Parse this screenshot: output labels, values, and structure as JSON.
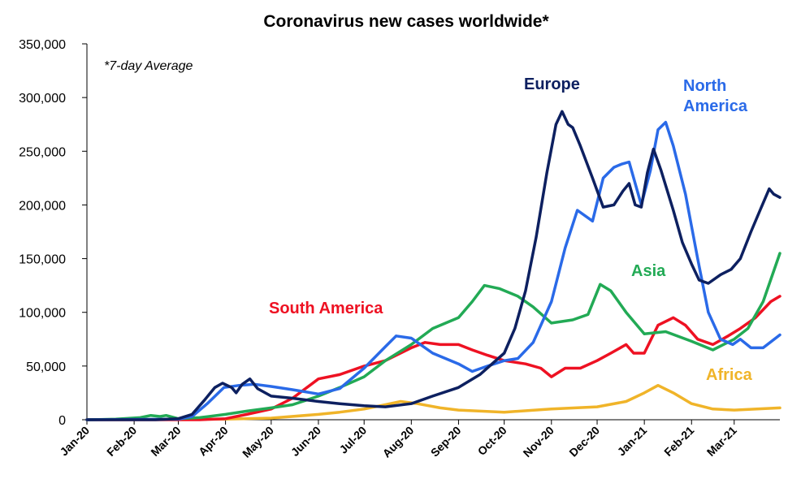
{
  "chart_data": {
    "type": "line",
    "title": "Coronavirus new cases worldwide*",
    "annotation": "*7-day Average",
    "xlabel": "",
    "ylabel": "",
    "ylim": [
      0,
      350000
    ],
    "y_ticks": [
      "0",
      "50,000",
      "100,000",
      "150,000",
      "200,000",
      "250,000",
      "300,000",
      "350,000"
    ],
    "x_ticks": [
      "Jan-20",
      "Feb-20",
      "Mar-20",
      "Apr-20",
      "May-20",
      "Jun-20",
      "Jul-20",
      "Aug-20",
      "Sep-20",
      "Oct-20",
      "Nov-20",
      "Dec-20",
      "Jan-21",
      "Feb-21",
      "Mar-21"
    ],
    "x_tick_values": [
      "2020-01-01",
      "2020-02-01",
      "2020-03-01",
      "2020-04-01",
      "2020-05-01",
      "2020-06-01",
      "2020-07-01",
      "2020-08-01",
      "2020-09-01",
      "2020-10-01",
      "2020-11-01",
      "2020-12-01",
      "2021-01-01",
      "2021-02-01",
      "2021-03-01"
    ],
    "xlim": [
      "2020-01-01",
      "2021-03-31"
    ],
    "grid": false,
    "legend": "none (series labelled directly on chart)",
    "series": [
      {
        "name": "Europe",
        "color": "#0d2060",
        "points": [
          [
            "2020-01-01",
            0
          ],
          [
            "2020-02-15",
            0
          ],
          [
            "2020-03-01",
            1000
          ],
          [
            "2020-03-10",
            5000
          ],
          [
            "2020-03-18",
            18000
          ],
          [
            "2020-03-25",
            30000
          ],
          [
            "2020-03-30",
            34000
          ],
          [
            "2020-04-05",
            30000
          ],
          [
            "2020-04-08",
            25000
          ],
          [
            "2020-04-12",
            33000
          ],
          [
            "2020-04-17",
            38000
          ],
          [
            "2020-04-22",
            29000
          ],
          [
            "2020-05-01",
            22000
          ],
          [
            "2020-05-15",
            20000
          ],
          [
            "2020-06-01",
            17000
          ],
          [
            "2020-06-15",
            15000
          ],
          [
            "2020-07-01",
            13000
          ],
          [
            "2020-07-15",
            12000
          ],
          [
            "2020-08-01",
            15000
          ],
          [
            "2020-08-15",
            22000
          ],
          [
            "2020-09-01",
            30000
          ],
          [
            "2020-09-15",
            42000
          ],
          [
            "2020-10-01",
            62000
          ],
          [
            "2020-10-08",
            85000
          ],
          [
            "2020-10-15",
            120000
          ],
          [
            "2020-10-22",
            170000
          ],
          [
            "2020-10-29",
            230000
          ],
          [
            "2020-11-04",
            275000
          ],
          [
            "2020-11-08",
            287000
          ],
          [
            "2020-11-12",
            275000
          ],
          [
            "2020-11-15",
            272000
          ],
          [
            "2020-11-20",
            255000
          ],
          [
            "2020-11-28",
            225000
          ],
          [
            "2020-12-05",
            198000
          ],
          [
            "2020-12-12",
            200000
          ],
          [
            "2020-12-18",
            213000
          ],
          [
            "2020-12-22",
            220000
          ],
          [
            "2020-12-26",
            200000
          ],
          [
            "2020-12-30",
            198000
          ],
          [
            "2021-01-03",
            230000
          ],
          [
            "2021-01-07",
            252000
          ],
          [
            "2021-01-12",
            232000
          ],
          [
            "2021-01-20",
            195000
          ],
          [
            "2021-01-26",
            165000
          ],
          [
            "2021-02-01",
            145000
          ],
          [
            "2021-02-06",
            130000
          ],
          [
            "2021-02-12",
            127000
          ],
          [
            "2021-02-20",
            135000
          ],
          [
            "2021-02-27",
            140000
          ],
          [
            "2021-03-05",
            150000
          ],
          [
            "2021-03-12",
            175000
          ],
          [
            "2021-03-18",
            195000
          ],
          [
            "2021-03-24",
            215000
          ],
          [
            "2021-03-27",
            210000
          ],
          [
            "2021-03-31",
            207000
          ]
        ]
      },
      {
        "name": "North America",
        "color": "#2a6ae8",
        "points": [
          [
            "2020-01-01",
            0
          ],
          [
            "2020-03-01",
            500
          ],
          [
            "2020-03-10",
            3000
          ],
          [
            "2020-03-20",
            15000
          ],
          [
            "2020-03-31",
            30000
          ],
          [
            "2020-04-10",
            32000
          ],
          [
            "2020-04-20",
            33000
          ],
          [
            "2020-05-01",
            31000
          ],
          [
            "2020-05-15",
            28000
          ],
          [
            "2020-06-01",
            24000
          ],
          [
            "2020-06-15",
            29000
          ],
          [
            "2020-07-01",
            48000
          ],
          [
            "2020-07-15",
            68000
          ],
          [
            "2020-07-22",
            78000
          ],
          [
            "2020-08-01",
            76000
          ],
          [
            "2020-08-15",
            62000
          ],
          [
            "2020-09-01",
            52000
          ],
          [
            "2020-09-10",
            45000
          ],
          [
            "2020-09-20",
            50000
          ],
          [
            "2020-10-01",
            55000
          ],
          [
            "2020-10-10",
            57000
          ],
          [
            "2020-10-20",
            72000
          ],
          [
            "2020-11-01",
            110000
          ],
          [
            "2020-11-10",
            160000
          ],
          [
            "2020-11-18",
            195000
          ],
          [
            "2020-11-28",
            185000
          ],
          [
            "2020-12-05",
            225000
          ],
          [
            "2020-12-12",
            235000
          ],
          [
            "2020-12-17",
            238000
          ],
          [
            "2020-12-22",
            240000
          ],
          [
            "2020-12-30",
            200000
          ],
          [
            "2021-01-05",
            232000
          ],
          [
            "2021-01-10",
            270000
          ],
          [
            "2021-01-15",
            277000
          ],
          [
            "2021-01-20",
            255000
          ],
          [
            "2021-01-28",
            210000
          ],
          [
            "2021-02-05",
            150000
          ],
          [
            "2021-02-12",
            100000
          ],
          [
            "2021-02-20",
            75000
          ],
          [
            "2021-02-28",
            70000
          ],
          [
            "2021-03-05",
            75000
          ],
          [
            "2021-03-12",
            67000
          ],
          [
            "2021-03-20",
            67000
          ],
          [
            "2021-03-31",
            79000
          ]
        ]
      },
      {
        "name": "Asia",
        "color": "#22aa55",
        "points": [
          [
            "2020-01-01",
            0
          ],
          [
            "2020-01-20",
            500
          ],
          [
            "2020-02-05",
            2000
          ],
          [
            "2020-02-12",
            4000
          ],
          [
            "2020-02-18",
            3000
          ],
          [
            "2020-02-22",
            4000
          ],
          [
            "2020-03-01",
            1000
          ],
          [
            "2020-03-15",
            2000
          ],
          [
            "2020-04-01",
            5000
          ],
          [
            "2020-04-15",
            8000
          ],
          [
            "2020-05-01",
            11000
          ],
          [
            "2020-05-15",
            14000
          ],
          [
            "2020-06-01",
            22000
          ],
          [
            "2020-06-15",
            30000
          ],
          [
            "2020-07-01",
            40000
          ],
          [
            "2020-07-15",
            55000
          ],
          [
            "2020-08-01",
            70000
          ],
          [
            "2020-08-15",
            85000
          ],
          [
            "2020-09-01",
            95000
          ],
          [
            "2020-09-10",
            110000
          ],
          [
            "2020-09-18",
            125000
          ],
          [
            "2020-09-28",
            122000
          ],
          [
            "2020-10-10",
            115000
          ],
          [
            "2020-10-20",
            105000
          ],
          [
            "2020-11-01",
            90000
          ],
          [
            "2020-11-15",
            93000
          ],
          [
            "2020-11-25",
            98000
          ],
          [
            "2020-12-03",
            126000
          ],
          [
            "2020-12-10",
            120000
          ],
          [
            "2020-12-20",
            100000
          ],
          [
            "2021-01-01",
            80000
          ],
          [
            "2021-01-15",
            82000
          ],
          [
            "2021-02-01",
            73000
          ],
          [
            "2021-02-15",
            65000
          ],
          [
            "2021-03-01",
            75000
          ],
          [
            "2021-03-10",
            85000
          ],
          [
            "2021-03-20",
            110000
          ],
          [
            "2021-03-31",
            155000
          ]
        ]
      },
      {
        "name": "South America",
        "color": "#ee1122",
        "points": [
          [
            "2020-01-01",
            0
          ],
          [
            "2020-03-15",
            0
          ],
          [
            "2020-04-01",
            1000
          ],
          [
            "2020-04-15",
            5000
          ],
          [
            "2020-05-01",
            10000
          ],
          [
            "2020-05-15",
            20000
          ],
          [
            "2020-06-01",
            38000
          ],
          [
            "2020-06-15",
            42000
          ],
          [
            "2020-07-01",
            50000
          ],
          [
            "2020-07-15",
            55000
          ],
          [
            "2020-08-01",
            67000
          ],
          [
            "2020-08-10",
            72000
          ],
          [
            "2020-08-20",
            70000
          ],
          [
            "2020-09-01",
            70000
          ],
          [
            "2020-09-10",
            65000
          ],
          [
            "2020-09-20",
            60000
          ],
          [
            "2020-10-01",
            55000
          ],
          [
            "2020-10-15",
            52000
          ],
          [
            "2020-10-25",
            48000
          ],
          [
            "2020-11-01",
            40000
          ],
          [
            "2020-11-10",
            48000
          ],
          [
            "2020-11-20",
            48000
          ],
          [
            "2020-12-01",
            55000
          ],
          [
            "2020-12-10",
            62000
          ],
          [
            "2020-12-20",
            70000
          ],
          [
            "2020-12-25",
            62000
          ],
          [
            "2021-01-01",
            62000
          ],
          [
            "2021-01-10",
            88000
          ],
          [
            "2021-01-20",
            95000
          ],
          [
            "2021-01-28",
            88000
          ],
          [
            "2021-02-05",
            75000
          ],
          [
            "2021-02-15",
            70000
          ],
          [
            "2021-02-25",
            78000
          ],
          [
            "2021-03-05",
            85000
          ],
          [
            "2021-03-15",
            95000
          ],
          [
            "2021-03-25",
            110000
          ],
          [
            "2021-03-31",
            115000
          ]
        ]
      },
      {
        "name": "Africa",
        "color": "#f0b429",
        "points": [
          [
            "2020-01-01",
            0
          ],
          [
            "2020-04-01",
            500
          ],
          [
            "2020-05-01",
            1500
          ],
          [
            "2020-06-01",
            5000
          ],
          [
            "2020-06-15",
            7000
          ],
          [
            "2020-07-01",
            10000
          ],
          [
            "2020-07-15",
            14000
          ],
          [
            "2020-07-25",
            17000
          ],
          [
            "2020-08-05",
            15000
          ],
          [
            "2020-08-20",
            11000
          ],
          [
            "2020-09-01",
            9000
          ],
          [
            "2020-10-01",
            7000
          ],
          [
            "2020-11-01",
            10000
          ],
          [
            "2020-12-01",
            12000
          ],
          [
            "2020-12-20",
            17000
          ],
          [
            "2021-01-01",
            25000
          ],
          [
            "2021-01-10",
            32000
          ],
          [
            "2021-01-20",
            25000
          ],
          [
            "2021-02-01",
            15000
          ],
          [
            "2021-02-15",
            10000
          ],
          [
            "2021-03-01",
            9000
          ],
          [
            "2021-03-31",
            11000
          ]
        ]
      }
    ]
  }
}
